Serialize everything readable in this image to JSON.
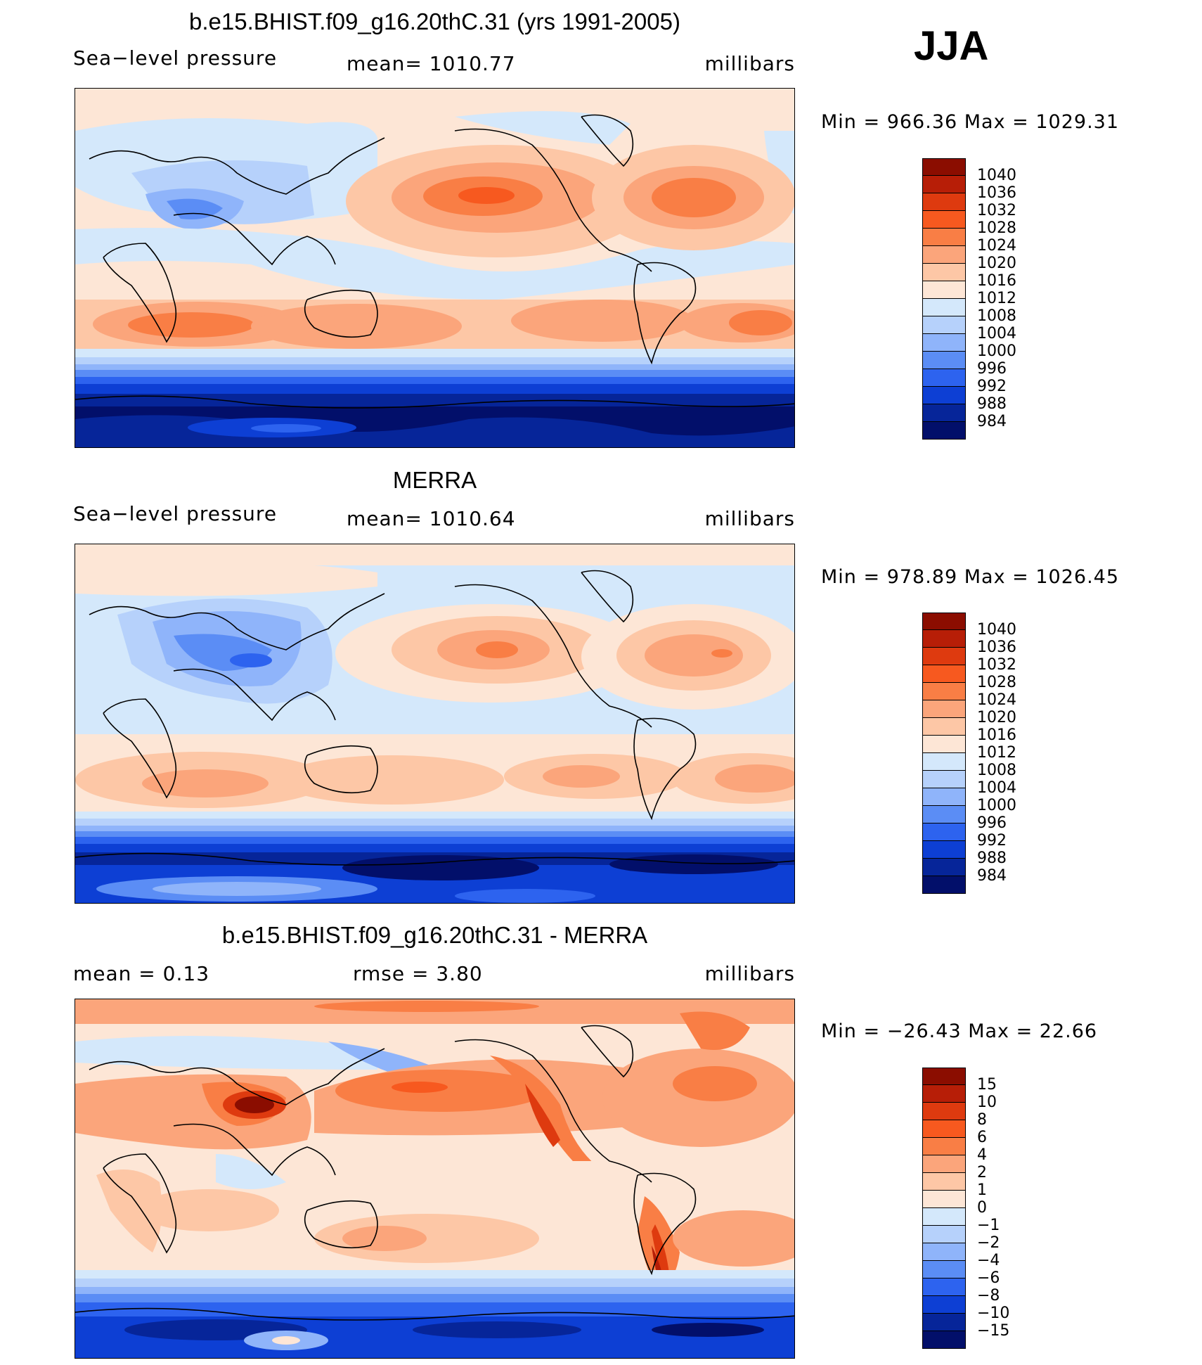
{
  "season": "JJA",
  "panels": [
    {
      "id": "model",
      "title": "b.e15.BHIST.f09_g16.20thC.31 (yrs 1991-2005)",
      "left_label": "Sea−level pressure",
      "center_label": "mean=  1010.77",
      "units": "millibars",
      "minmax": "Min  =  966.36  Max  =  1029.31",
      "levels": [
        "1040",
        "1036",
        "1032",
        "1028",
        "1024",
        "1020",
        "1016",
        "1012",
        "1008",
        "1004",
        "1000",
        "996",
        "992",
        "988",
        "984"
      ],
      "colors": [
        "#8b0d00",
        "#b71e07",
        "#de3a0f",
        "#f7591f",
        "#f97e45",
        "#fba57b",
        "#fdc7a6",
        "#fde6d6",
        "#d4e8fb",
        "#b6d1fb",
        "#8fb4fa",
        "#5b8df5",
        "#2d63ef",
        "#0d3fd4",
        "#062599",
        "#020f6a"
      ]
    },
    {
      "id": "obs",
      "title": "MERRA",
      "left_label": "Sea−level pressure",
      "center_label": "mean=  1010.64",
      "units": "millibars",
      "minmax": "Min  =  978.89  Max  =  1026.45",
      "levels": [
        "1040",
        "1036",
        "1032",
        "1028",
        "1024",
        "1020",
        "1016",
        "1012",
        "1008",
        "1004",
        "1000",
        "996",
        "992",
        "988",
        "984"
      ],
      "colors": [
        "#8b0d00",
        "#b71e07",
        "#de3a0f",
        "#f7591f",
        "#f97e45",
        "#fba57b",
        "#fdc7a6",
        "#fde6d6",
        "#d4e8fb",
        "#b6d1fb",
        "#8fb4fa",
        "#5b8df5",
        "#2d63ef",
        "#0d3fd4",
        "#062599",
        "#020f6a"
      ]
    },
    {
      "id": "diff",
      "title": "b.e15.BHIST.f09_g16.20thC.31 - MERRA",
      "left_label": "mean  =     0.13",
      "center_label": "rmse  =     3.80",
      "units": "millibars",
      "minmax": "Min  =  −26.43  Max  =     22.66",
      "levels": [
        "15",
        "10",
        "8",
        "6",
        "4",
        "2",
        "1",
        "0",
        "−1",
        "−2",
        "−4",
        "−6",
        "−8",
        "−10",
        "−15"
      ],
      "colors": [
        "#8b0d00",
        "#b71e07",
        "#de3a0f",
        "#f7591f",
        "#f97e45",
        "#fba57b",
        "#fdc7a6",
        "#fde6d6",
        "#d4e8fb",
        "#b6d1fb",
        "#8fb4fa",
        "#5b8df5",
        "#2d63ef",
        "#0d3fd4",
        "#062599",
        "#020f6a"
      ]
    }
  ],
  "chart_data": [
    {
      "type": "heatmap",
      "title": "b.e15.BHIST.f09_g16.20thC.31 (yrs 1991-2005)",
      "variable": "Sea−level pressure",
      "units": "millibars",
      "mean": 1010.77,
      "min": 966.36,
      "max": 1029.31,
      "contour_levels": [
        1040,
        1036,
        1032,
        1028,
        1024,
        1020,
        1016,
        1012,
        1008,
        1004,
        1000,
        996,
        992,
        988,
        984
      ]
    },
    {
      "type": "heatmap",
      "title": "MERRA",
      "variable": "Sea−level pressure",
      "units": "millibars",
      "mean": 1010.64,
      "min": 978.89,
      "max": 1026.45,
      "contour_levels": [
        1040,
        1036,
        1032,
        1028,
        1024,
        1020,
        1016,
        1012,
        1008,
        1004,
        1000,
        996,
        992,
        988,
        984
      ]
    },
    {
      "type": "heatmap",
      "title": "b.e15.BHIST.f09_g16.20thC.31 - MERRA",
      "units": "millibars",
      "mean": 0.13,
      "rmse": 3.8,
      "min": -26.43,
      "max": 22.66,
      "contour_levels": [
        15,
        10,
        8,
        6,
        4,
        2,
        1,
        0,
        -1,
        -2,
        -4,
        -6,
        -8,
        -10,
        -15
      ]
    }
  ]
}
